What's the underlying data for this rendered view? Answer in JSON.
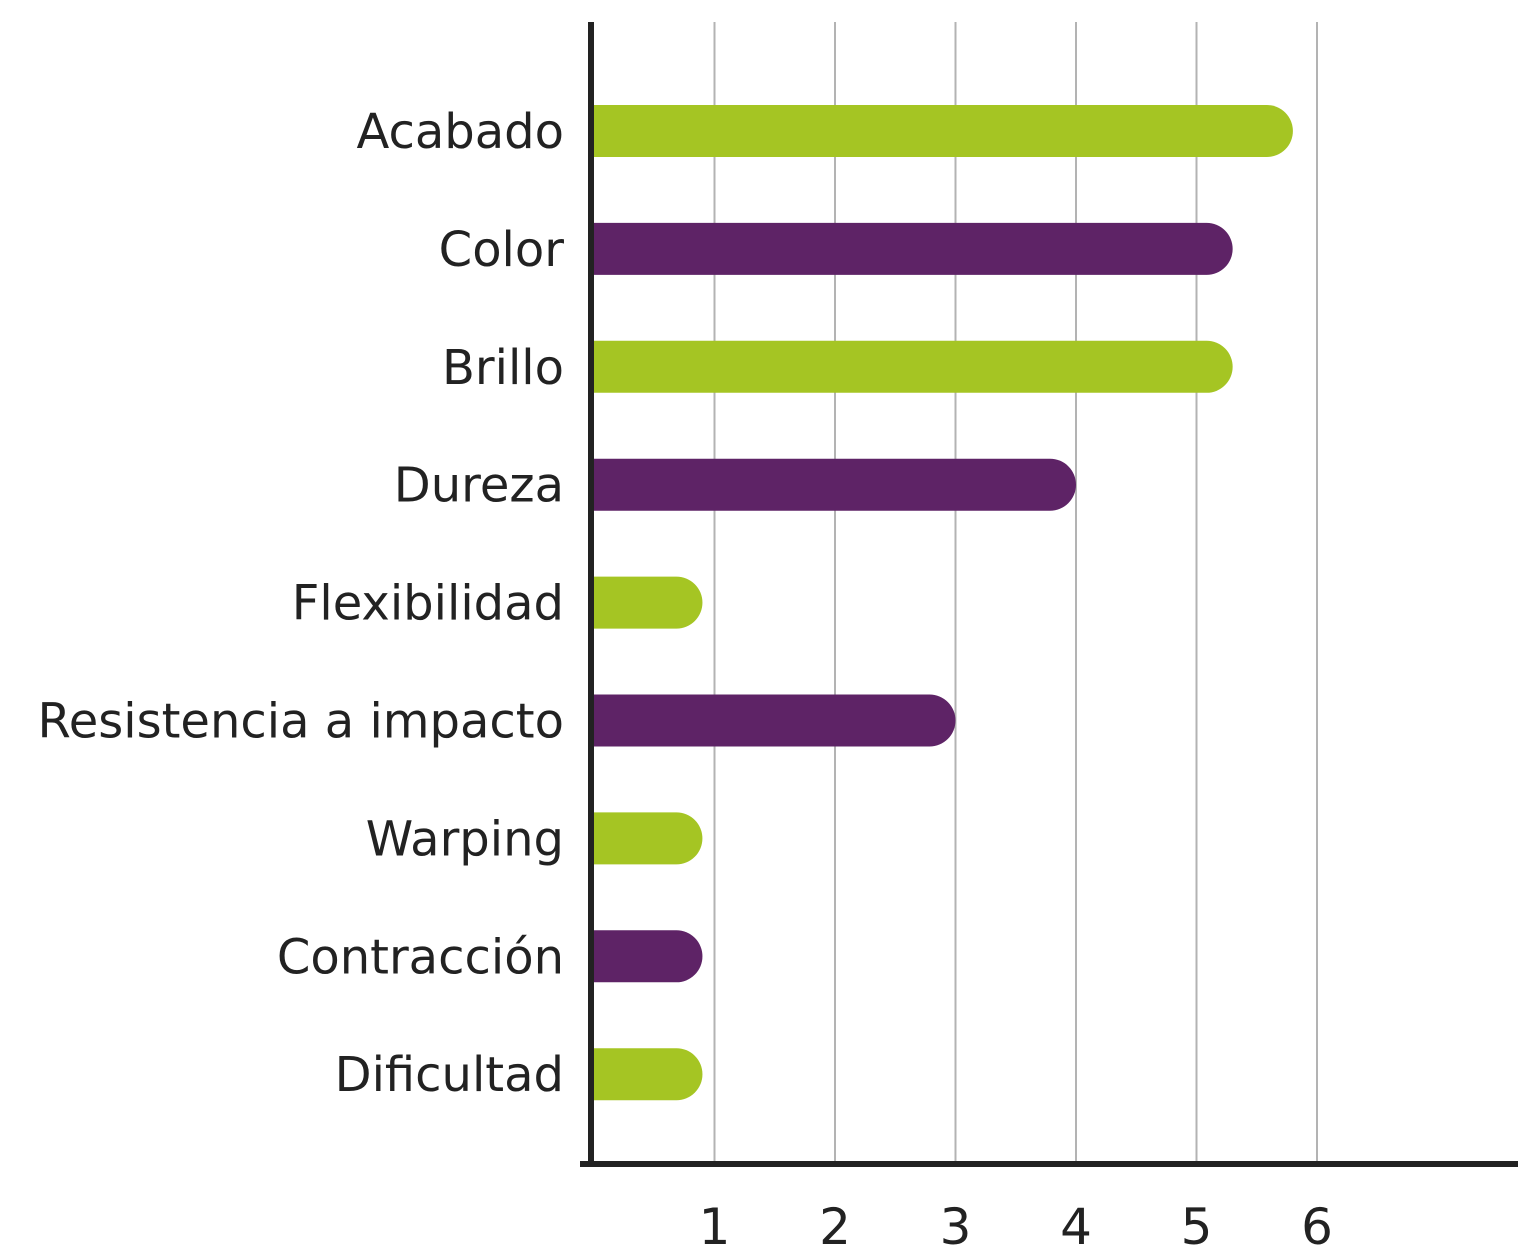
{
  "chart_data": {
    "type": "bar",
    "orientation": "horizontal",
    "categories": [
      "Acabado",
      "Color",
      "Brillo",
      "Dureza",
      "Flexibilidad",
      "Resistencia a impacto",
      "Warping",
      "Contracción",
      "Dificultad"
    ],
    "values": [
      5.8,
      5.3,
      5.3,
      4.0,
      0.9,
      3.0,
      0.9,
      0.9,
      0.9
    ],
    "bar_colors": [
      "#a5c523",
      "#5e2366",
      "#a5c523",
      "#5e2366",
      "#a5c523",
      "#5e2366",
      "#a5c523",
      "#5e2366",
      "#a5c523"
    ],
    "x_ticks": [
      1,
      2,
      3,
      4,
      5,
      6
    ],
    "xlim": [
      0,
      7.8
    ],
    "grid": true,
    "title": "",
    "xlabel": "",
    "ylabel": ""
  }
}
